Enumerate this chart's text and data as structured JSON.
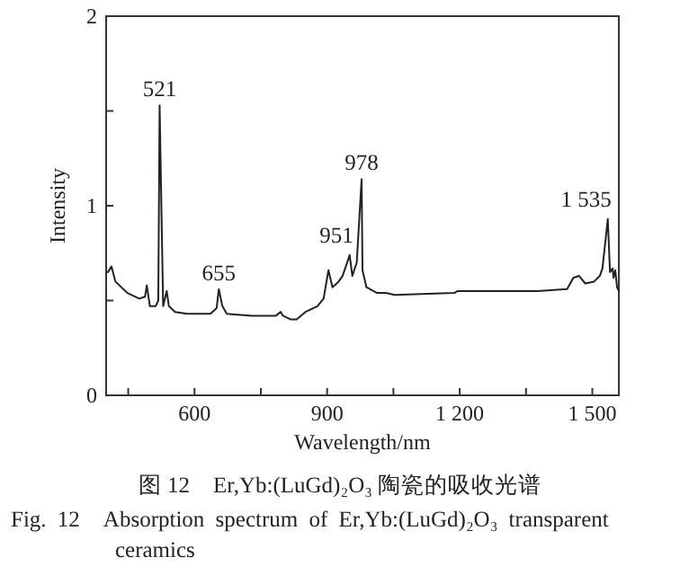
{
  "chart_data": {
    "type": "line",
    "xlabel": "Wavelength/nm",
    "ylabel": "Intensity",
    "color": "#222222",
    "marker": "none",
    "line_style": "solid",
    "x": [
      404,
      412,
      421,
      448,
      475,
      488,
      492,
      499,
      512,
      518,
      521,
      529,
      537,
      542,
      556,
      583,
      636,
      650,
      655,
      663,
      673,
      730,
      784,
      795,
      800,
      818,
      831,
      851,
      878,
      892,
      903,
      912,
      926,
      935,
      951,
      957,
      967,
      978,
      980,
      989,
      1013,
      1033,
      1053,
      1188,
      1195,
      1376,
      1443,
      1457,
      1470,
      1484,
      1504,
      1517,
      1523,
      1535,
      1540,
      1546,
      1548,
      1552,
      1556,
      1560
    ],
    "values": [
      0.65,
      0.68,
      0.6,
      0.54,
      0.51,
      0.52,
      0.58,
      0.47,
      0.47,
      0.5,
      1.53,
      0.47,
      0.55,
      0.47,
      0.44,
      0.43,
      0.43,
      0.46,
      0.56,
      0.47,
      0.43,
      0.42,
      0.42,
      0.44,
      0.42,
      0.4,
      0.4,
      0.44,
      0.47,
      0.51,
      0.66,
      0.57,
      0.6,
      0.63,
      0.74,
      0.63,
      0.7,
      1.14,
      0.66,
      0.57,
      0.54,
      0.54,
      0.53,
      0.54,
      0.55,
      0.55,
      0.56,
      0.62,
      0.63,
      0.59,
      0.6,
      0.63,
      0.67,
      0.93,
      0.65,
      0.67,
      0.62,
      0.66,
      0.57,
      0.55
    ],
    "xlim": [
      400,
      1560
    ],
    "ylim": [
      0,
      2
    ],
    "xticks": [
      {
        "value": 450,
        "label": null
      },
      600,
      {
        "value": 750,
        "label": null
      },
      900,
      {
        "value": 1050,
        "label": null
      },
      {
        "value": 1200,
        "label": "1 200"
      },
      {
        "value": 1350,
        "label": null
      },
      {
        "value": 1500,
        "label": "1 500"
      }
    ],
    "yticks": [
      0,
      {
        "value": 0.5,
        "label": null
      },
      1,
      {
        "value": 1.5,
        "label": null
      },
      2
    ],
    "annotations": [
      {
        "text": "521",
        "x": 521,
        "y": 1.53
      },
      {
        "text": "655",
        "x": 655,
        "y": 0.56
      },
      {
        "text": "951",
        "x": 951,
        "y": 0.74
      },
      {
        "text": "978",
        "x": 978,
        "y": 1.14
      },
      {
        "text": "1 535",
        "x": 1535,
        "y": 0.93
      },
      "图 12　Er,Yb:(LuGd)₂O₃ 陶瓷的吸收光谱",
      "Fig. 12　Absorption spectrum of Er,Yb:(LuGd)₂O₃ transparent ceramics"
    ]
  }
}
